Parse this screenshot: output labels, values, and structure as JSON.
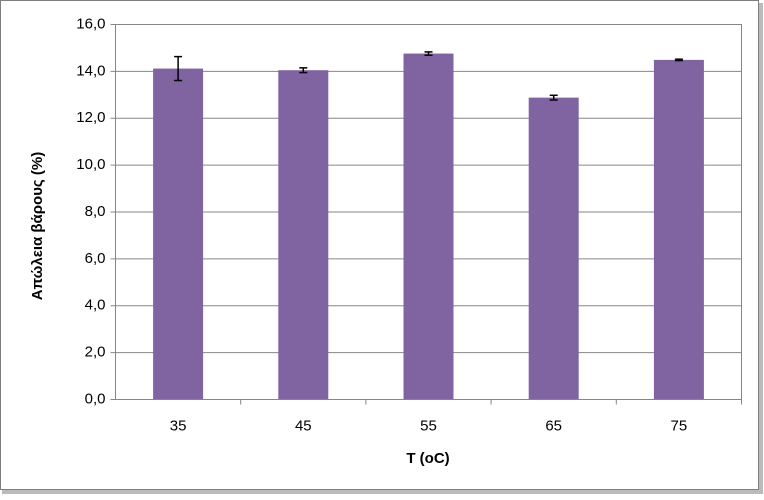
{
  "chart_data": {
    "type": "bar",
    "x_label": "T (oC)",
    "y_label": "Απώλεια βάρους (%)",
    "categories": [
      "35",
      "45",
      "55",
      "65",
      "75"
    ],
    "values": [
      14.12,
      14.05,
      14.76,
      12.88,
      14.49
    ],
    "errors": [
      0.51,
      0.1,
      0.07,
      0.1,
      0.03
    ],
    "color": "#8064a2",
    "ylim": [
      0,
      16
    ],
    "yticks": [
      {
        "value": 0,
        "label": "0,0"
      },
      {
        "value": 2,
        "label": "2,0"
      },
      {
        "value": 4,
        "label": "4,0"
      },
      {
        "value": 6,
        "label": "6,0"
      },
      {
        "value": 8,
        "label": "8,0"
      },
      {
        "value": 10,
        "label": "10,0"
      },
      {
        "value": 12,
        "label": "12,0"
      },
      {
        "value": 14,
        "label": "14,0"
      },
      {
        "value": 16,
        "label": "16,0"
      }
    ],
    "grid": true
  }
}
